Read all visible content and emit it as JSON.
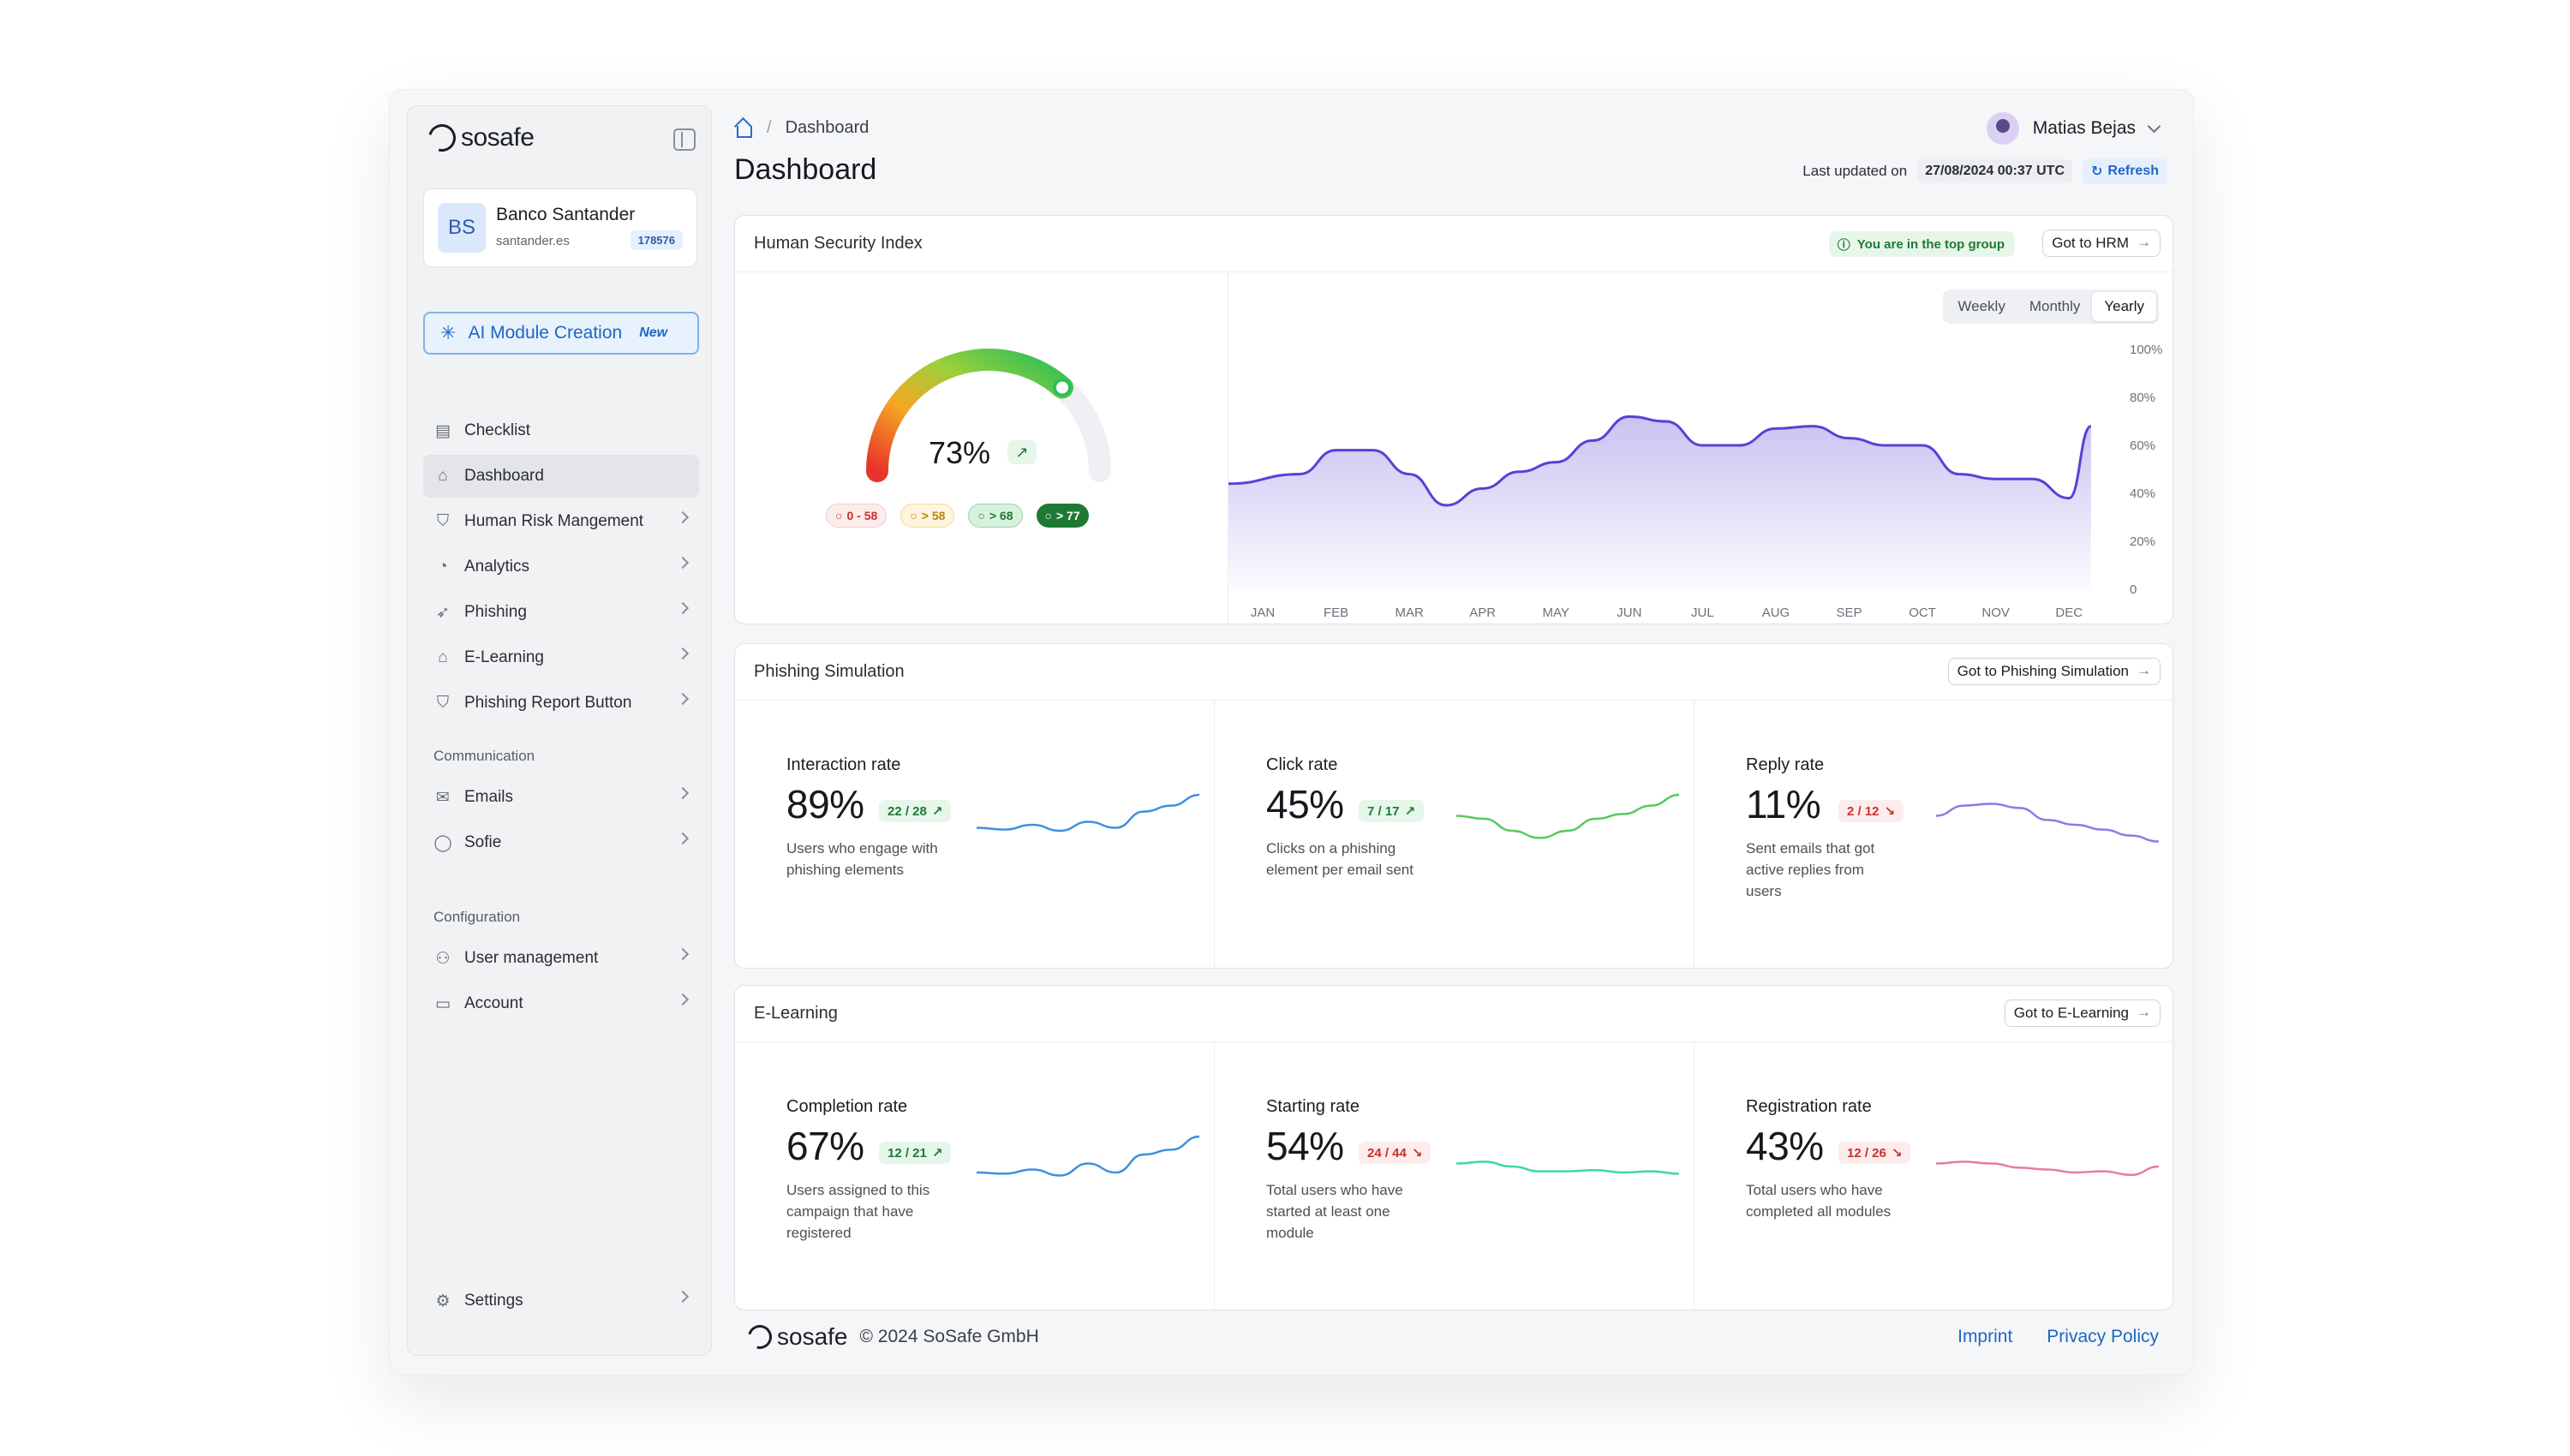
{
  "brand": {
    "name": "sosafe"
  },
  "org": {
    "initials": "BS",
    "name": "Banco Santander",
    "domain": "santander.es",
    "id": "178576"
  },
  "ai_button": {
    "label": "AI Module Creation",
    "badge": "New"
  },
  "nav": {
    "main": [
      "Checklist",
      "Dashboard",
      "Human Risk Mangement",
      "Analytics",
      "Phishing",
      "E-Learning",
      "Phishing Report Button"
    ],
    "communication_label": "Communication",
    "communication": [
      "Emails",
      "Sofie"
    ],
    "configuration_label": "Configuration",
    "configuration": [
      "User management",
      "Account"
    ],
    "settings": "Settings"
  },
  "breadcrumb": {
    "sep": "/",
    "current": "Dashboard"
  },
  "page_title": "Dashboard",
  "user": {
    "name": "Matias Bejas"
  },
  "updated": {
    "label": "Last updated on",
    "timestamp": "27/08/2024 00:37 UTC",
    "refresh": "Refresh"
  },
  "hsi": {
    "title": "Human Security Index",
    "badge": "You are in the top group",
    "button": "Got to HRM",
    "gauge_value": "73%",
    "gauge_fraction": 0.73,
    "ranges": [
      "0 - 58",
      "> 58",
      "> 68",
      "> 77"
    ],
    "periods": [
      "Weekly",
      "Monthly",
      "Yearly"
    ],
    "selected_period": "Yearly"
  },
  "chart_data": {
    "type": "area",
    "categories": [
      "JAN",
      "FEB",
      "MAR",
      "APR",
      "MAY",
      "JUN",
      "JUL",
      "AUG",
      "SEP",
      "OCT",
      "NOV",
      "DEC"
    ],
    "y_ticks": [
      "100%",
      "80%",
      "60%",
      "40%",
      "20%",
      "0"
    ],
    "ylim": [
      0,
      100
    ],
    "x": [
      0,
      0.5,
      1,
      1.5,
      2,
      2.5,
      3,
      3.5,
      4,
      4.5,
      5,
      5.5,
      6,
      6.5,
      7,
      7.5,
      8,
      8.5,
      9,
      9.5,
      10,
      10.5,
      11,
      11.3
    ],
    "values": [
      44,
      48,
      58,
      58,
      48,
      35,
      42,
      49,
      53,
      62,
      72,
      70,
      60,
      60,
      67,
      68,
      63,
      60,
      60,
      48,
      46,
      46,
      38,
      68
    ],
    "color": "#5b3fd6"
  },
  "phishing": {
    "title": "Phishing Simulation",
    "button": "Got to Phishing Simulation",
    "metrics": [
      {
        "title": "Interaction rate",
        "value": "89%",
        "badge": "22 / 28",
        "trend": "up",
        "desc": "Users who engage with phishing elements",
        "color": "#3f8fe0",
        "spark": [
          0.55,
          0.58,
          0.5,
          0.6,
          0.45,
          0.55,
          0.28,
          0.18,
          0.0
        ]
      },
      {
        "title": "Click rate",
        "value": "45%",
        "badge": "7 / 17",
        "trend": "up",
        "desc": "Clicks on a phishing element per email sent",
        "color": "#57c95a",
        "spark": [
          0.35,
          0.4,
          0.6,
          0.72,
          0.6,
          0.4,
          0.32,
          0.18,
          0.0
        ]
      },
      {
        "title": "Reply rate",
        "value": "11%",
        "badge": "2 / 12",
        "trend": "down",
        "desc": "Sent emails that got active replies from users",
        "color": "#8b7be8",
        "spark": [
          0.35,
          0.18,
          0.15,
          0.22,
          0.42,
          0.5,
          0.58,
          0.68,
          0.78
        ]
      }
    ]
  },
  "elearning": {
    "title": "E-Learning",
    "button": "Got to E-Learning",
    "metrics": [
      {
        "title": "Completion rate",
        "value": "67%",
        "badge": "12 / 21",
        "trend": "up",
        "desc": "Users assigned to this campaign that have registered",
        "color": "#3f8fe0",
        "spark": [
          0.6,
          0.62,
          0.55,
          0.65,
          0.45,
          0.6,
          0.3,
          0.22,
          0.0
        ]
      },
      {
        "title": "Starting rate",
        "value": "54%",
        "badge": "24 / 44",
        "trend": "down",
        "desc": "Total users who have started at least one module",
        "color": "#3dd6b0",
        "spark": [
          0.45,
          0.42,
          0.5,
          0.58,
          0.58,
          0.56,
          0.6,
          0.58,
          0.62
        ]
      },
      {
        "title": "Registration rate",
        "value": "43%",
        "badge": "12 / 26",
        "trend": "down",
        "desc": "Total users who have completed all modules",
        "color": "#e77aa6",
        "spark": [
          0.45,
          0.42,
          0.45,
          0.52,
          0.55,
          0.6,
          0.58,
          0.64,
          0.5
        ]
      }
    ]
  },
  "footer": {
    "copyright": "© 2024 SoSafe GmbH",
    "imprint": "Imprint",
    "privacy": "Privacy Policy"
  }
}
